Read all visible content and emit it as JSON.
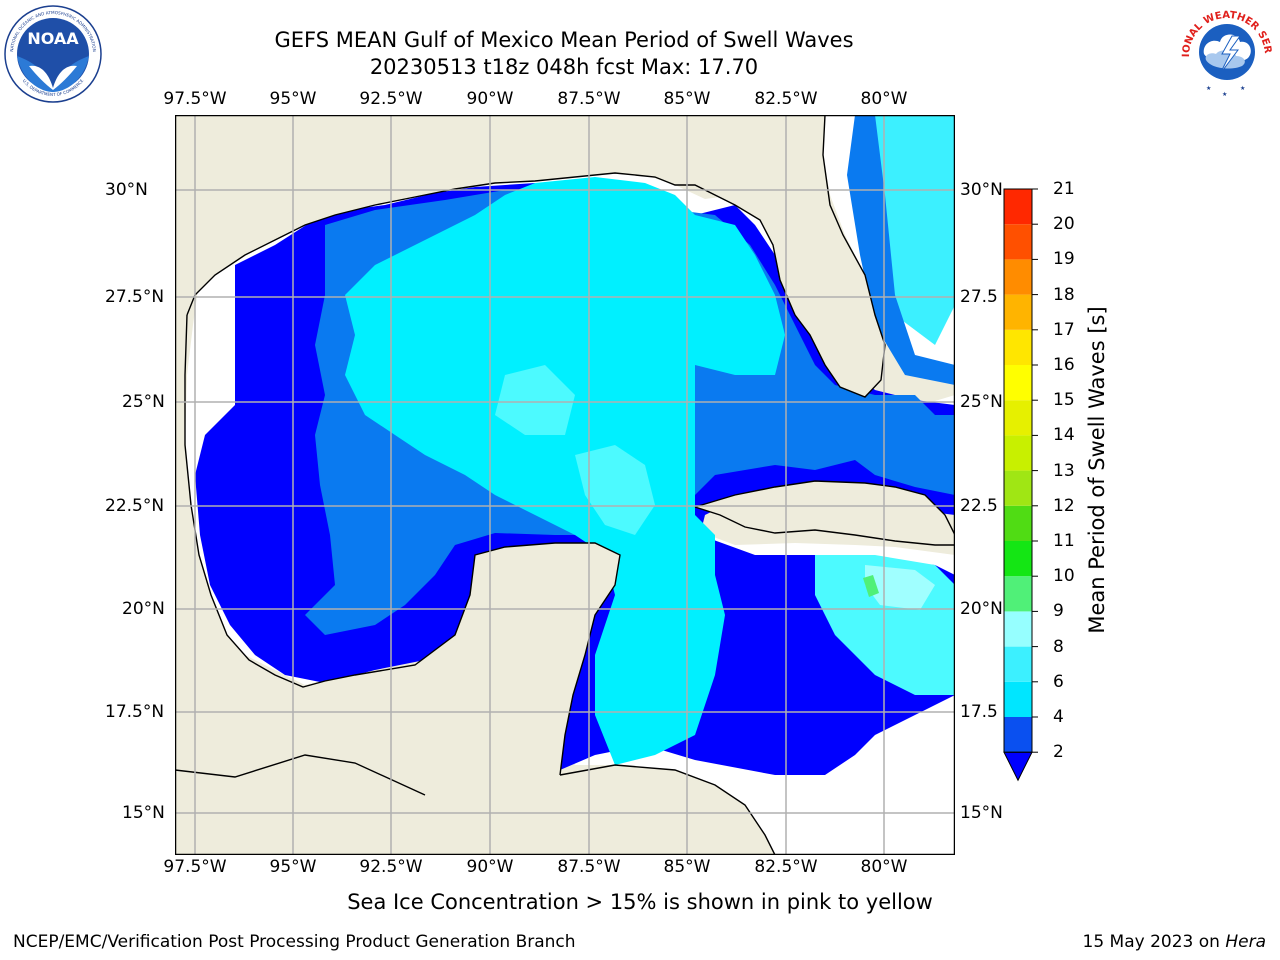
{
  "title": {
    "line1": "GEFS MEAN Gulf of Mexico Mean Period of Swell Waves",
    "line2": "20230513 t18z 048h fcst   Max: 17.70"
  },
  "map": {
    "lon_ticks": [
      "97.5°W",
      "95°W",
      "92.5°W",
      "90°W",
      "87.5°W",
      "85°W",
      "82.5°W",
      "80°W"
    ],
    "lat_ticks": [
      "30°N",
      "27.5°N",
      "25°N",
      "22.5°N",
      "20°N",
      "17.5°N",
      "15°N"
    ],
    "lat_ticks_right": [
      "30°N",
      "27.5",
      "25°N",
      "22.5",
      "20°N",
      "17.5",
      "15°N"
    ],
    "lon_range": [
      -98,
      -78.3
    ],
    "lat_range": [
      14,
      31.8
    ],
    "gridlines": true,
    "land_color": "#eeecdc",
    "coastline_color": "#000000"
  },
  "colorbar": {
    "title": "Mean Period of Swell Waves [s]",
    "tick_labels": [
      "21",
      "20",
      "19",
      "18",
      "17",
      "16",
      "15",
      "14",
      "13",
      "12",
      "11",
      "10",
      "9",
      "8",
      "6",
      "4",
      "2"
    ],
    "levels": [
      2,
      4,
      6,
      8,
      9,
      10,
      11,
      12,
      13,
      14,
      15,
      16,
      17,
      18,
      19,
      20,
      21
    ],
    "colors": [
      "#0a50f0",
      "#00e6ff",
      "#3cf0ff",
      "#96ffff",
      "#50f078",
      "#14e614",
      "#50dc14",
      "#a0e614",
      "#c8f000",
      "#e6f000",
      "#ffff00",
      "#ffe600",
      "#ffb400",
      "#ff8c00",
      "#ff5000",
      "#ff2800",
      "#ff0000"
    ],
    "under_color": "#0000ff",
    "extend": "min"
  },
  "field_colors": {
    "lt2": "#0000ff",
    "c2_4": "#0a7af0",
    "c4_6": "#00f0ff",
    "c6_8": "#4cfaff",
    "c8_9": "#a0ffff",
    "c9_10": "#50f078",
    "ice_yellow": "#e6f000",
    "ice_orange": "#ffd000"
  },
  "footer": {
    "note": "Sea Ice Concentration > 15% is shown in pink to yellow",
    "left": "NCEP/EMC/Verification Post Processing Product Generation Branch",
    "right_prefix": "15 May 2023 on ",
    "right_host": "Hera"
  },
  "logos": {
    "noaa_text": "NOAA",
    "noaa_ring_text": "NATIONAL OCEANIC AND ATMOSPHERIC ADMINISTRATION",
    "noaa_ring_bottom": "U.S. DEPARTMENT OF COMMERCE",
    "nws_ring_text": "NATIONAL WEATHER SERVICE"
  }
}
